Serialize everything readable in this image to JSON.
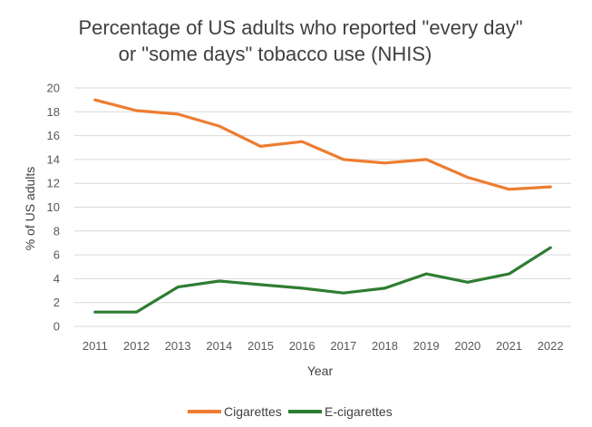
{
  "chart_data": {
    "type": "line",
    "title_line1": "Percentage of US adults who reported \"every day\"",
    "title_line2": "or \"some days\" tobacco use (NHIS)",
    "xlabel": "Year",
    "ylabel": "% of US adults",
    "categories": [
      "2011",
      "2012",
      "2013",
      "2014",
      "2015",
      "2016",
      "2017",
      "2018",
      "2019",
      "2020",
      "2021",
      "2022"
    ],
    "ylim": [
      0,
      20
    ],
    "yticks": [
      0,
      2,
      4,
      6,
      8,
      10,
      12,
      14,
      16,
      18,
      20
    ],
    "grid": true,
    "legend_position": "bottom",
    "series": [
      {
        "name": "Cigarettes",
        "color": "#ED7D31",
        "values": [
          19.0,
          18.1,
          17.8,
          16.8,
          15.1,
          15.5,
          14.0,
          13.7,
          14.0,
          12.5,
          11.5,
          11.7
        ]
      },
      {
        "name": "E-cigarettes",
        "color": "#2E7D32",
        "values": [
          1.2,
          1.2,
          3.3,
          3.8,
          3.5,
          3.2,
          2.8,
          3.2,
          4.4,
          3.7,
          4.4,
          6.6
        ]
      }
    ]
  }
}
